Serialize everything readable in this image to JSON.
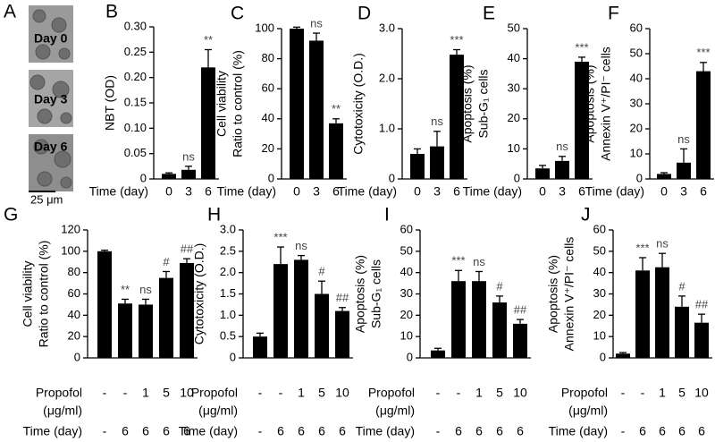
{
  "panel_a": {
    "panel": "A",
    "images": [
      "Day 0",
      "Day 3",
      "Day 6"
    ],
    "scale_bar": "25 μm"
  },
  "chart_data": [
    {
      "type": "bar",
      "panel": "B",
      "ylabel": [
        "NBT (OD)"
      ],
      "xlabel": [
        "Time (day)"
      ],
      "categories": [
        "0",
        "3",
        "6"
      ],
      "values": [
        0.01,
        0.018,
        0.22
      ],
      "errors": [
        0.002,
        0.007,
        0.035
      ],
      "annotations": [
        null,
        "ns",
        "**"
      ],
      "color": "#000000",
      "ylim": [
        0,
        0.3
      ],
      "yticks": [
        0,
        0.05,
        {
          "value": 0.1,
          "label": "0.10"
        },
        0.15,
        {
          "value": 0.2,
          "label": "0.20"
        },
        0.25,
        {
          "value": 0.3,
          "label": "0.30"
        }
      ]
    },
    {
      "type": "bar",
      "panel": "C",
      "ylabel": [
        "Cell viability",
        "Ratio to control (%)"
      ],
      "xlabel": [
        "Time (day)"
      ],
      "categories": [
        "0",
        "3",
        "6"
      ],
      "values": [
        100,
        92,
        37
      ],
      "errors": [
        1,
        5,
        3
      ],
      "annotations": [
        null,
        "ns",
        "**"
      ],
      "color": "#000000",
      "ylim": [
        0,
        100
      ],
      "yticks": [
        0,
        20,
        40,
        60,
        80,
        100
      ]
    },
    {
      "type": "bar",
      "panel": "D",
      "ylabel": [
        "Cytotoxicity (O.D.)"
      ],
      "xlabel": [
        "Time (day)"
      ],
      "categories": [
        "0",
        "3",
        "6"
      ],
      "values": [
        0.5,
        0.65,
        2.48
      ],
      "errors": [
        0.1,
        0.3,
        0.1
      ],
      "annotations": [
        null,
        "ns",
        "***"
      ],
      "color": "#000000",
      "ylim": [
        0,
        3
      ],
      "yticks": [
        0,
        {
          "value": 1,
          "label": "1.0"
        },
        {
          "value": 2,
          "label": "2.0"
        },
        {
          "value": 3,
          "label": "3.0"
        }
      ]
    },
    {
      "type": "bar",
      "panel": "E",
      "ylabel": [
        "Apoptosis (%)",
        "Sub-G₁ cells"
      ],
      "xlabel": [
        "Time (day)"
      ],
      "categories": [
        "0",
        "3",
        "6"
      ],
      "values": [
        3.5,
        6,
        39
      ],
      "errors": [
        1,
        1.5,
        1.5
      ],
      "annotations": [
        null,
        "ns",
        "***"
      ],
      "color": "#000000",
      "ylim": [
        0,
        50
      ],
      "yticks": [
        0,
        10,
        20,
        30,
        40,
        50
      ]
    },
    {
      "type": "bar",
      "panel": "F",
      "ylabel": [
        "Apoptosis (%)",
        "Annexin V⁺/PI⁻ cells"
      ],
      "xlabel": [
        "Time (day)"
      ],
      "categories": [
        "0",
        "3",
        "6"
      ],
      "values": [
        2,
        6.5,
        43
      ],
      "errors": [
        0.5,
        5.5,
        3.5
      ],
      "annotations": [
        null,
        "ns",
        "***"
      ],
      "color": "#000000",
      "ylim": [
        0,
        60
      ],
      "yticks": [
        0,
        10,
        20,
        30,
        40,
        50,
        60
      ]
    },
    {
      "type": "bar",
      "panel": "G",
      "ylabel": [
        "Cell viability",
        "Ratio to control (%)"
      ],
      "xlabel": [
        "Propofol",
        "(μg/ml)"
      ],
      "categories": [
        "-",
        "-",
        "1",
        "5",
        "10"
      ],
      "time_row": {
        "label": "Time (day)",
        "values": [
          "-",
          "6",
          "6",
          "6",
          "6"
        ]
      },
      "values": [
        100,
        51,
        50,
        75,
        89
      ],
      "errors": [
        1,
        4,
        5,
        6,
        4
      ],
      "annotations": [
        null,
        "**",
        "ns",
        "#",
        "##"
      ],
      "color": "#000000",
      "ylim": [
        0,
        120
      ],
      "yticks": [
        0,
        20,
        40,
        60,
        80,
        100,
        120
      ]
    },
    {
      "type": "bar",
      "panel": "H",
      "ylabel": [
        "Cytotoxicity (O.D.)"
      ],
      "xlabel": [
        "Propofol",
        "(μg/ml)"
      ],
      "categories": [
        "-",
        "-",
        "1",
        "5",
        "10"
      ],
      "time_row": {
        "label": "Time (day)",
        "values": [
          "-",
          "6",
          "6",
          "6",
          "6"
        ]
      },
      "values": [
        0.5,
        2.2,
        2.3,
        1.5,
        1.1
      ],
      "errors": [
        0.08,
        0.4,
        0.1,
        0.3,
        0.08
      ],
      "annotations": [
        null,
        "***",
        "ns",
        "#",
        "##"
      ],
      "color": "#000000",
      "ylim": [
        0,
        3
      ],
      "yticks": [
        0,
        0.5,
        {
          "value": 1,
          "label": "1.0"
        },
        1.5,
        {
          "value": 2,
          "label": "2.0"
        },
        2.5,
        {
          "value": 3,
          "label": "3.0"
        }
      ]
    },
    {
      "type": "bar",
      "panel": "I",
      "ylabel": [
        "Apoptosis (%)",
        "Sub-G₁ cells"
      ],
      "xlabel": [
        "Propofol",
        "(μg/ml)"
      ],
      "categories": [
        "-",
        "-",
        "1",
        "5",
        "10"
      ],
      "time_row": {
        "label": "Time (day)",
        "values": [
          "-",
          "6",
          "6",
          "6",
          "6"
        ]
      },
      "values": [
        3.5,
        36,
        36,
        26,
        16
      ],
      "errors": [
        1,
        5,
        4.5,
        3,
        2
      ],
      "annotations": [
        null,
        "***",
        "ns",
        "#",
        "##"
      ],
      "color": "#000000",
      "ylim": [
        0,
        60
      ],
      "yticks": [
        0,
        10,
        20,
        30,
        40,
        50,
        60
      ]
    },
    {
      "type": "bar",
      "panel": "J",
      "ylabel": [
        "Apoptosis (%)",
        "Annexin V⁺/PI⁻ cells"
      ],
      "xlabel": [
        "Propofol",
        "(μg/ml)"
      ],
      "categories": [
        "-",
        "-",
        "1",
        "5",
        "10"
      ],
      "time_row": {
        "label": "Time (day)",
        "values": [
          "-",
          "6",
          "6",
          "6",
          "6"
        ]
      },
      "values": [
        2,
        41,
        42.5,
        24,
        16.5
      ],
      "errors": [
        0.5,
        6,
        6.5,
        5,
        4
      ],
      "annotations": [
        null,
        "***",
        "ns",
        "#",
        "##"
      ],
      "color": "#000000",
      "ylim": [
        0,
        60
      ],
      "yticks": [
        0,
        10,
        20,
        30,
        40,
        50,
        60
      ]
    }
  ]
}
